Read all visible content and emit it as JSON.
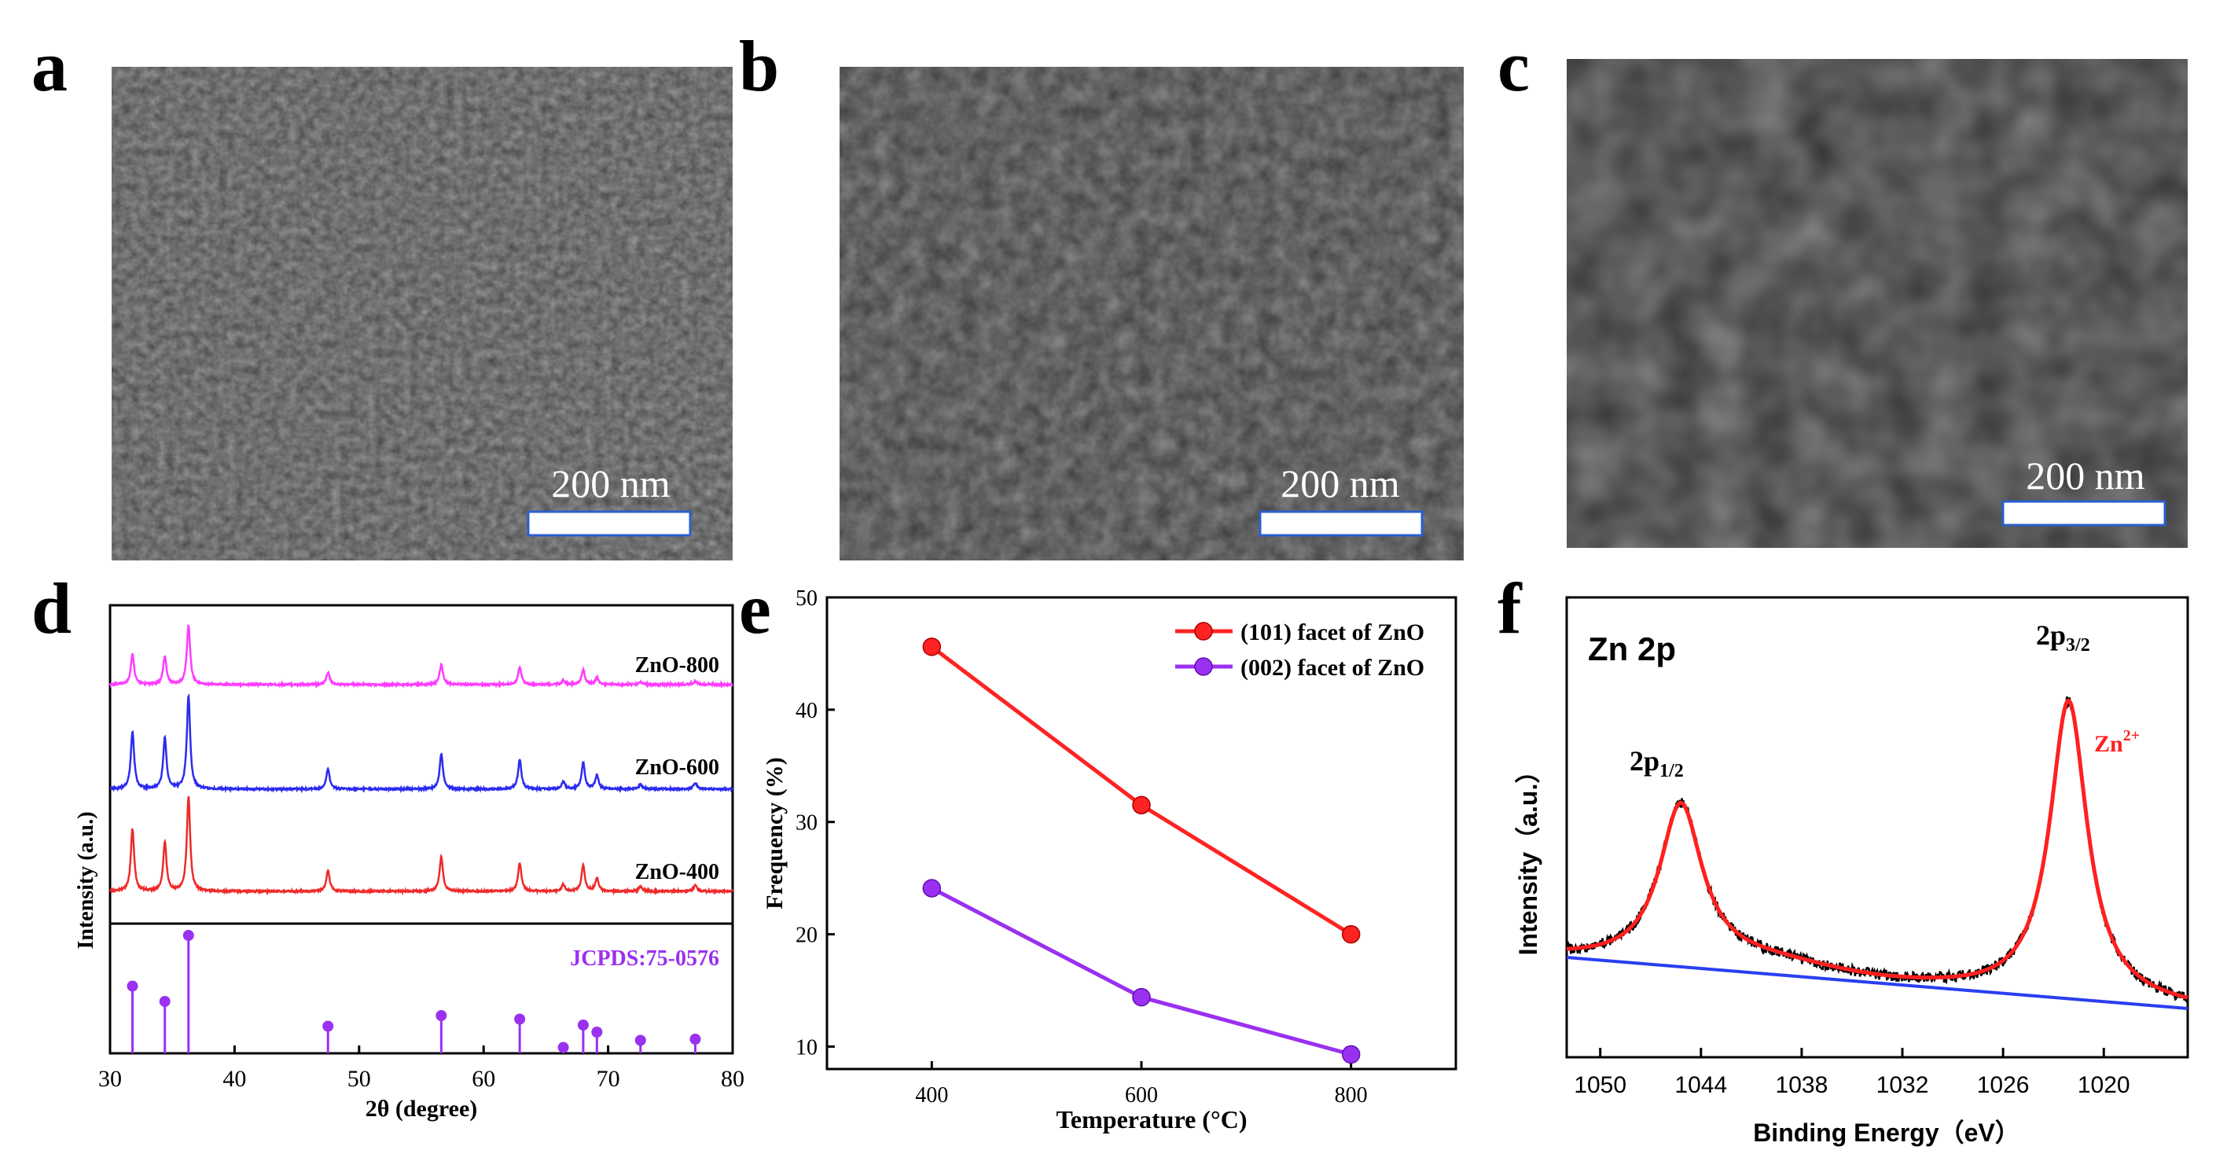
{
  "figure": {
    "panels": {
      "a": {
        "label": "a",
        "scale_bar": "200 nm",
        "image": "SEM micrograph, small ZnO nanoparticles"
      },
      "b": {
        "label": "b",
        "scale_bar": "200 nm",
        "image": "SEM micrograph, medium ZnO particles"
      },
      "c": {
        "label": "c",
        "scale_bar": "200 nm",
        "image": "SEM micrograph, large faceted ZnO particles"
      },
      "d": {
        "label": "d"
      },
      "e": {
        "label": "e"
      },
      "f": {
        "label": "f"
      }
    }
  },
  "colors": {
    "magenta": "#ff3bff",
    "blue": "#2b2bf0",
    "red": "#ef2a2a",
    "purple": "#9a30f0",
    "xps_red": "#ff2020",
    "xps_blue": "#2a3ef0",
    "black": "#000000"
  },
  "chart_data": [
    {
      "panel": "d",
      "type": "line",
      "title": "",
      "xlabel": "2θ (degree)",
      "ylabel": "Intensity (a.u.)",
      "xlim": [
        30,
        80
      ],
      "xticks": [
        "30",
        "40",
        "50",
        "60",
        "70",
        "80"
      ],
      "peaks_2theta": [
        31.8,
        34.4,
        36.3,
        47.5,
        56.6,
        62.9,
        66.4,
        68.0,
        69.1,
        72.6,
        77.0
      ],
      "series": [
        {
          "name": "ZnO-800",
          "color": "#ff3bff",
          "rel_intensity": [
            0.45,
            0.42,
            0.88,
            0.18,
            0.3,
            0.26,
            0.06,
            0.22,
            0.1,
            0.04,
            0.05
          ]
        },
        {
          "name": "ZnO-600",
          "color": "#2b2bf0",
          "rel_intensity": [
            0.62,
            0.55,
            1.0,
            0.22,
            0.38,
            0.32,
            0.08,
            0.28,
            0.15,
            0.05,
            0.07
          ]
        },
        {
          "name": "ZnO-400",
          "color": "#ef2a2a",
          "rel_intensity": [
            0.66,
            0.52,
            1.0,
            0.22,
            0.37,
            0.3,
            0.07,
            0.27,
            0.14,
            0.05,
            0.06
          ]
        }
      ],
      "reference": {
        "name": "JCPDS:75-0576",
        "color": "#9a30f0",
        "rel_intensity": [
          0.57,
          0.44,
          1.0,
          0.23,
          0.32,
          0.29,
          0.05,
          0.24,
          0.18,
          0.11,
          0.12
        ]
      }
    },
    {
      "panel": "e",
      "type": "line",
      "title": "",
      "xlabel": "Temperature (°C)",
      "ylabel": "Frequency (%)",
      "x": [
        400,
        600,
        800
      ],
      "xlim": [
        300,
        900
      ],
      "ylim": [
        8,
        50
      ],
      "xticks": [
        "400",
        "600",
        "800"
      ],
      "yticks": [
        "10",
        "20",
        "30",
        "40",
        "50"
      ],
      "series": [
        {
          "name": "(101) facet of ZnO",
          "color": "#ff2222",
          "values": [
            45.6,
            31.5,
            20.0
          ]
        },
        {
          "name": "(002) facet of ZnO",
          "color": "#9a30f0",
          "values": [
            24.1,
            14.4,
            9.3
          ]
        }
      ],
      "legend": "top-right"
    },
    {
      "panel": "f",
      "type": "line",
      "title": "Zn 2p",
      "xlabel": "Binding Energy（eV）",
      "ylabel": "Intensity（a.u.）",
      "xlim": [
        1052,
        1015
      ],
      "xticks": [
        "1050",
        "1044",
        "1038",
        "1032",
        "1026",
        "1020"
      ],
      "peaks": [
        {
          "label_main": "2p",
          "label_sub": "1/2",
          "binding_energy": 1045.2,
          "rel_height": 0.52
        },
        {
          "label_main": "2p",
          "label_sub": "3/2",
          "binding_energy": 1022.1,
          "rel_height": 0.97
        }
      ],
      "fit_label": {
        "main": "Zn",
        "sup": "2+"
      },
      "series": [
        {
          "name": "raw data",
          "color": "#000000"
        },
        {
          "name": "fit",
          "color": "#ff2020"
        },
        {
          "name": "background",
          "color": "#2a3ef0"
        }
      ]
    }
  ]
}
